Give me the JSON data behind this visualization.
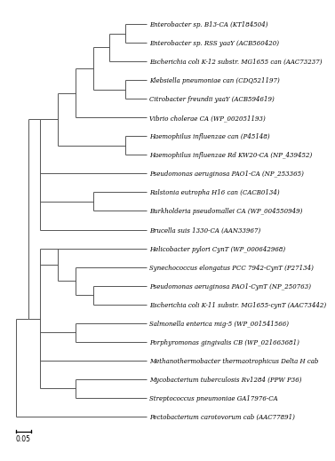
{
  "taxa": [
    "Enterobacter sp. B13-CA (KT184504)",
    "Enterobacter sp. RSS yaaY (ACB560420)",
    "Escherichia coli K-12 substr. MG1655 can (AAC73237)",
    "Klebsiella pneumoniae can (CDQ521197)",
    "Citrobacter freundii yaaY (ACB594619)",
    "Vibrio cholerae CA (WP_002051193)",
    "Haemophilus influenzae can (P45148)",
    "Haemophilus influenzae Rd KW20-CA (NP_439452)",
    "Pseudomonas aeruginosa PAO1-CA (NP_253365)",
    "Ralstonia eutropha H16 can (CACB0134)",
    "Burkholderia pseudomallei CA (WP_004550949)",
    "Brucella suis 1330-CA (AAN33967)",
    "Helicobacter pylori CynT (WP_000642968)",
    "Synechococcus elongatus PCC 7942-CynT (P27134)",
    "Pseudomonas aeruginosa PAO1-CynT (NP_250763)",
    "Escherichia coli K-11 substr. MG1655-cynT (AAC73442)",
    "Salmonella enterica mig-5 (WP_001541566)",
    "Porphyromonas gingivalis CB (WP_021663681)",
    "Methanothermobacter thermaotrophicus Delta H cab",
    "Mycobacterium tuberculosis Rv1284 (PPW P36)",
    "Streptococcus pneumoniae GA17976-CA",
    "Pectobacterium carotovorum cab (AAC77891)"
  ],
  "tree_color": "#4a4a4a",
  "bg_color": "#ffffff",
  "label_fontsize": 5.0,
  "scale_label": "0.05",
  "lw": 0.65
}
